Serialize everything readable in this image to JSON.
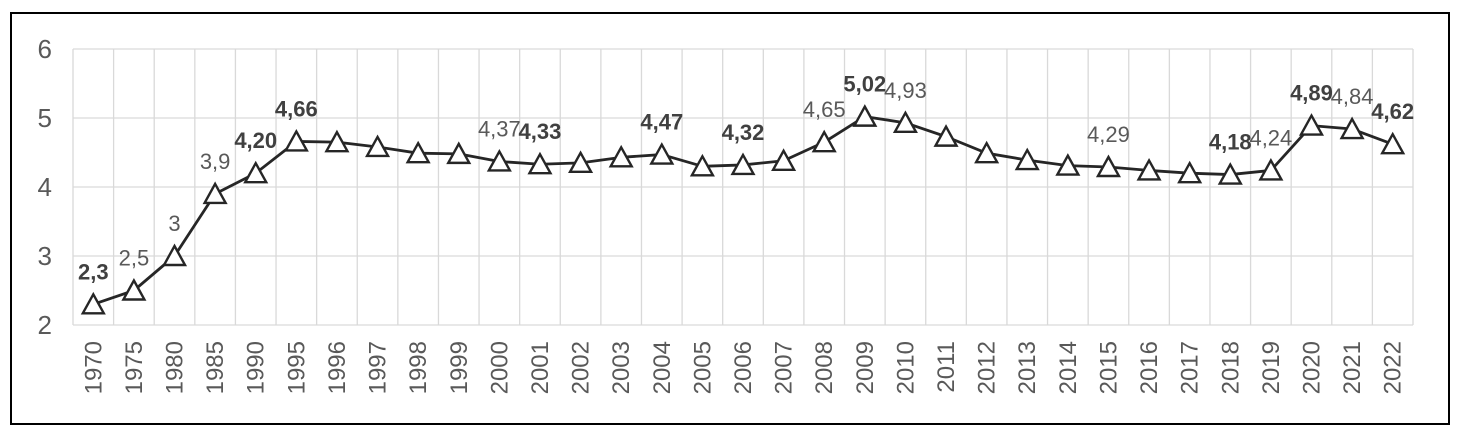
{
  "chart_data": {
    "type": "line",
    "title": "",
    "categories": [
      "1970",
      "1975",
      "1980",
      "1985",
      "1990",
      "1995",
      "1996",
      "1997",
      "1998",
      "1999",
      "2000",
      "2001",
      "2002",
      "2003",
      "2004",
      "2005",
      "2006",
      "2007",
      "2008",
      "2009",
      "2010",
      "2011",
      "2012",
      "2013",
      "2014",
      "2015",
      "2016",
      "2017",
      "2018",
      "2019",
      "2020",
      "2021",
      "2022"
    ],
    "values": [
      2.3,
      2.5,
      3.0,
      3.9,
      4.2,
      4.66,
      4.65,
      4.58,
      4.49,
      4.48,
      4.37,
      4.33,
      4.35,
      4.43,
      4.47,
      4.3,
      4.32,
      4.38,
      4.65,
      5.02,
      4.93,
      4.73,
      4.49,
      4.39,
      4.31,
      4.29,
      4.24,
      4.2,
      4.18,
      4.24,
      4.89,
      4.84,
      4.62
    ],
    "data_labels": [
      {
        "index": 0,
        "text": "2,3",
        "bold": true
      },
      {
        "index": 1,
        "text": "2,5",
        "bold": false
      },
      {
        "index": 2,
        "text": "3",
        "bold": false
      },
      {
        "index": 3,
        "text": "3,9",
        "bold": false
      },
      {
        "index": 4,
        "text": "4,20",
        "bold": true
      },
      {
        "index": 5,
        "text": "4,66",
        "bold": true
      },
      {
        "index": 10,
        "text": "4,37",
        "bold": false
      },
      {
        "index": 11,
        "text": "4,33",
        "bold": true
      },
      {
        "index": 14,
        "text": "4,47",
        "bold": true
      },
      {
        "index": 16,
        "text": "4,32",
        "bold": true
      },
      {
        "index": 18,
        "text": "4,65",
        "bold": false
      },
      {
        "index": 19,
        "text": "5,02",
        "bold": true
      },
      {
        "index": 20,
        "text": "4,93",
        "bold": false
      },
      {
        "index": 25,
        "text": "4,29",
        "bold": false
      },
      {
        "index": 28,
        "text": "4,18",
        "bold": true
      },
      {
        "index": 29,
        "text": "4,24",
        "bold": false
      },
      {
        "index": 30,
        "text": "4,89",
        "bold": true
      },
      {
        "index": 31,
        "text": "4,84",
        "bold": false
      },
      {
        "index": 32,
        "text": "4,62",
        "bold": true
      }
    ],
    "y_axis": {
      "min": 2,
      "max": 6,
      "ticks": [
        6,
        5,
        4,
        3,
        2
      ]
    },
    "xlabel": "",
    "ylabel": "",
    "legend": "none",
    "grid": "both",
    "marker": "triangle-outline",
    "x_label_rotation_deg": -90,
    "colors": {
      "line": "#262626",
      "marker_fill": "#ffffff",
      "marker_stroke": "#262626",
      "gridline": "#d9d9d9",
      "axis_text": "#595959",
      "data_label_regular": "#595959",
      "data_label_bold": "#404040",
      "chart_border": "#000000",
      "background": "#ffffff"
    }
  }
}
